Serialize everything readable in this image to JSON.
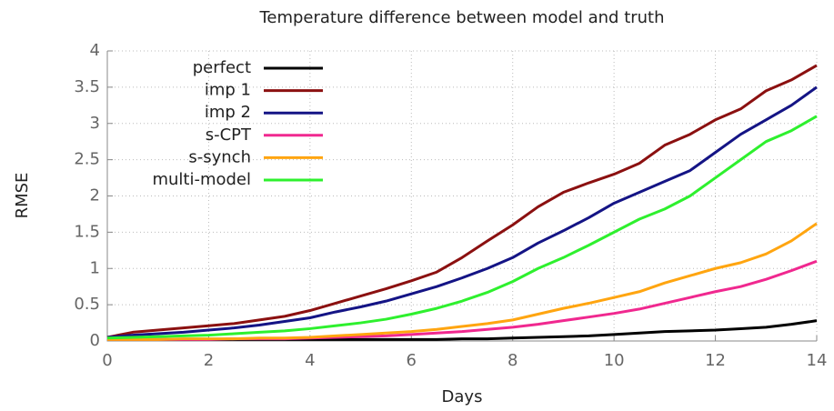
{
  "chart_data": {
    "type": "line",
    "title": "Temperature difference between model and truth",
    "x_label": "Days",
    "y_label": "RMSE",
    "x": [
      0,
      0.5,
      1,
      1.5,
      2,
      2.5,
      3,
      3.5,
      4,
      4.5,
      5,
      5.5,
      6,
      6.5,
      7,
      7.5,
      8,
      8.5,
      9,
      9.5,
      10,
      10.5,
      11,
      11.5,
      12,
      12.5,
      13,
      13.5,
      14
    ],
    "series": [
      {
        "name": "perfect",
        "color": "#000000",
        "values": [
          0.02,
          0.02,
          0.02,
          0.02,
          0.02,
          0.02,
          0.02,
          0.02,
          0.02,
          0.02,
          0.02,
          0.02,
          0.02,
          0.02,
          0.03,
          0.03,
          0.04,
          0.05,
          0.06,
          0.07,
          0.09,
          0.11,
          0.13,
          0.14,
          0.15,
          0.17,
          0.19,
          0.23,
          0.28
        ]
      },
      {
        "name": "imp 1",
        "color": "#8b1010",
        "values": [
          0.05,
          0.12,
          0.15,
          0.18,
          0.21,
          0.24,
          0.29,
          0.34,
          0.42,
          0.52,
          0.62,
          0.72,
          0.83,
          0.95,
          1.15,
          1.38,
          1.6,
          1.85,
          2.05,
          2.18,
          2.3,
          2.45,
          2.7,
          2.85,
          3.05,
          3.2,
          3.45,
          3.6,
          3.8
        ]
      },
      {
        "name": "imp 2",
        "color": "#141485",
        "values": [
          0.05,
          0.08,
          0.1,
          0.12,
          0.15,
          0.18,
          0.22,
          0.27,
          0.32,
          0.4,
          0.47,
          0.55,
          0.65,
          0.75,
          0.87,
          1.0,
          1.15,
          1.35,
          1.52,
          1.7,
          1.9,
          2.05,
          2.2,
          2.35,
          2.6,
          2.85,
          3.05,
          3.25,
          3.5
        ]
      },
      {
        "name": "s-CPT",
        "color": "#f0288f",
        "values": [
          0.02,
          0.02,
          0.02,
          0.02,
          0.02,
          0.03,
          0.03,
          0.03,
          0.04,
          0.05,
          0.06,
          0.07,
          0.09,
          0.11,
          0.13,
          0.16,
          0.19,
          0.23,
          0.28,
          0.33,
          0.38,
          0.44,
          0.52,
          0.6,
          0.68,
          0.75,
          0.85,
          0.97,
          1.1
        ]
      },
      {
        "name": "s-synch",
        "color": "#ffa510",
        "values": [
          0.02,
          0.02,
          0.02,
          0.03,
          0.03,
          0.03,
          0.04,
          0.04,
          0.05,
          0.07,
          0.09,
          0.11,
          0.13,
          0.16,
          0.2,
          0.24,
          0.29,
          0.37,
          0.45,
          0.52,
          0.6,
          0.68,
          0.8,
          0.9,
          1.0,
          1.08,
          1.2,
          1.38,
          1.62
        ]
      },
      {
        "name": "multi-model",
        "color": "#2ef02e",
        "values": [
          0.04,
          0.05,
          0.06,
          0.07,
          0.08,
          0.1,
          0.12,
          0.14,
          0.17,
          0.21,
          0.25,
          0.3,
          0.37,
          0.45,
          0.55,
          0.67,
          0.82,
          1.0,
          1.15,
          1.32,
          1.5,
          1.68,
          1.82,
          2.0,
          2.25,
          2.5,
          2.75,
          2.9,
          3.1
        ]
      }
    ],
    "xlim": [
      0,
      14
    ],
    "xticks": [
      0,
      2,
      4,
      6,
      8,
      10,
      12,
      14
    ],
    "ylim": [
      0,
      4
    ],
    "yticks": [
      0,
      0.5,
      1,
      1.5,
      2,
      2.5,
      3,
      3.5,
      4
    ],
    "grid": true,
    "legend": "upper-left"
  }
}
